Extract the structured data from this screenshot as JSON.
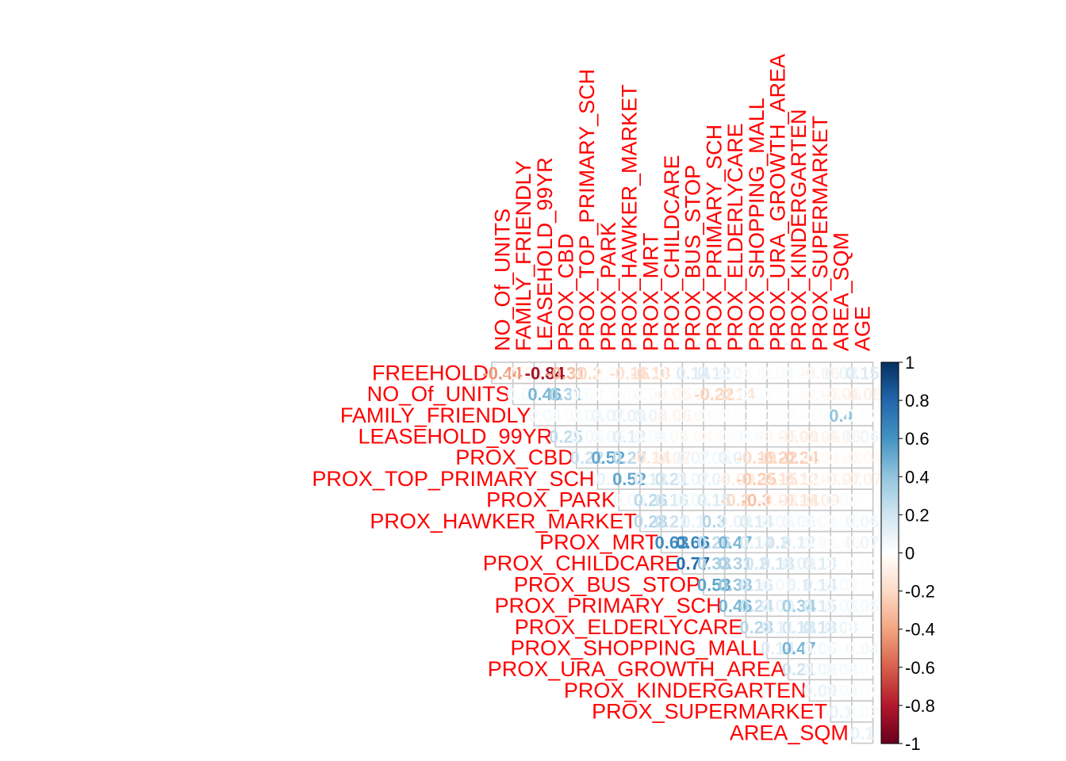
{
  "chart_data": {
    "type": "heatmap",
    "subtype": "correlation-matrix-upper-number",
    "title": "",
    "label_color": "#ff0000",
    "row_labels": [
      "FREEHOLD",
      "NO_Of_UNITS",
      "FAMILY_FRIENDLY",
      "LEASEHOLD_99YR",
      "PROX_CBD",
      "PROX_TOP_PRIMARY_SCH",
      "PROX_PARK",
      "PROX_HAWKER_MARKET",
      "PROX_MRT",
      "PROX_CHILDCARE",
      "PROX_BUS_STOP",
      "PROX_PRIMARY_SCH",
      "PROX_ELDERLYCARE",
      "PROX_SHOPPING_MALL",
      "PROX_URA_GROWTH_AREA",
      "PROX_KINDERGARTEN",
      "PROX_SUPERMARKET",
      "AREA_SQM"
    ],
    "column_labels": [
      "NO_Of_UNITS",
      "FAMILY_FRIENDLY",
      "LEASEHOLD_99YR",
      "PROX_CBD",
      "PROX_TOP_PRIMARY_SCH",
      "PROX_PARK",
      "PROX_HAWKER_MARKET",
      "PROX_MRT",
      "PROX_CHILDCARE",
      "PROX_BUS_STOP",
      "PROX_PRIMARY_SCH",
      "PROX_ELDERLYCARE",
      "PROX_SHOPPING_MALL",
      "PROX_URA_GROWTH_AREA",
      "PROX_KINDERGARTEN",
      "PROX_SUPERMARKET",
      "AREA_SQM",
      "AGE"
    ],
    "matrix": [
      [
        -0.44,
        -0.06,
        -0.84,
        -0.31,
        -0.2,
        -0.03,
        -0.16,
        -0.18,
        -0.01,
        0.14,
        0.12,
        0.05,
        -0.01,
        0.03,
        0.02,
        -0.06,
        0.08,
        0.15
      ],
      [
        null,
        0.04,
        0.46,
        0.31,
        0.03,
        0.01,
        0.02,
        0.03,
        -0.05,
        -0.04,
        -0.22,
        -0.14,
        0.02,
        0.01,
        -0.01,
        -0.03,
        -0.06,
        -0.08
      ],
      [
        null,
        null,
        0.04,
        0.02,
        0.04,
        0.07,
        0.09,
        0.08,
        -0.06,
        -0.03,
        0.02,
        0.01,
        0.0,
        -0.01,
        -0.01,
        0.02,
        0.4,
        0.02
      ],
      [
        null,
        null,
        null,
        0.25,
        0.05,
        0.05,
        0.12,
        0.04,
        0.04,
        -0.04,
        -0.02,
        0.02,
        0.03,
        -0.05,
        -0.09,
        -0.06,
        -0.06,
        0.06
      ],
      [
        null,
        null,
        null,
        null,
        0.22,
        0.52,
        0.27,
        -0.14,
        -0.07,
        0.07,
        0.05,
        0.09,
        -0.19,
        -0.22,
        -0.24,
        -0.03,
        -0.02,
        -0.04
      ],
      [
        null,
        null,
        null,
        null,
        null,
        0.1,
        0.52,
        0.13,
        0.21,
        0.07,
        0.09,
        -0.09,
        -0.25,
        -0.15,
        -0.12,
        -0.03,
        -0.07,
        -0.07
      ],
      [
        null,
        null,
        null,
        null,
        null,
        null,
        0.05,
        0.26,
        0.16,
        0.05,
        0.15,
        -0.2,
        -0.3,
        -0.08,
        -0.14,
        -0.09,
        0.02,
        0.0
      ],
      [
        null,
        null,
        null,
        null,
        null,
        null,
        null,
        0.28,
        0.21,
        0.1,
        0.3,
        0.09,
        0.14,
        0.05,
        0.06,
        0.03,
        0.02,
        0.06
      ],
      [
        null,
        null,
        null,
        null,
        null,
        null,
        null,
        null,
        0.63,
        0.66,
        0.26,
        0.47,
        0.14,
        0.2,
        0.12,
        0.03,
        -0.03,
        0.07
      ],
      [
        null,
        null,
        null,
        null,
        null,
        null,
        null,
        null,
        null,
        0.77,
        0.33,
        0.31,
        0.2,
        0.18,
        0.09,
        0.13,
        0.01,
        0.02
      ],
      [
        null,
        null,
        null,
        null,
        null,
        null,
        null,
        null,
        null,
        null,
        0.53,
        0.38,
        0.16,
        0.05,
        0.1,
        0.14,
        0.03,
        0.02
      ],
      [
        null,
        null,
        null,
        null,
        null,
        null,
        null,
        null,
        null,
        null,
        null,
        0.46,
        0.24,
        0.09,
        0.34,
        0.15,
        0.03,
        0.05
      ],
      [
        null,
        null,
        null,
        null,
        null,
        null,
        null,
        null,
        null,
        null,
        null,
        null,
        0.28,
        0.11,
        0.18,
        0.18,
        0.08,
        0.01
      ],
      [
        null,
        null,
        null,
        null,
        null,
        null,
        null,
        null,
        null,
        null,
        null,
        null,
        null,
        0.14,
        0.47,
        0.06,
        0.01,
        0.04
      ],
      [
        null,
        null,
        null,
        null,
        null,
        null,
        null,
        null,
        null,
        null,
        null,
        null,
        null,
        null,
        0.21,
        0.06,
        0.04,
        0.02
      ],
      [
        null,
        null,
        null,
        null,
        null,
        null,
        null,
        null,
        null,
        null,
        null,
        null,
        null,
        null,
        null,
        0.09,
        0.03,
        0.02
      ],
      [
        null,
        null,
        null,
        null,
        null,
        null,
        null,
        null,
        null,
        null,
        null,
        null,
        null,
        null,
        null,
        null,
        0.1,
        0.03
      ],
      [
        null,
        null,
        null,
        null,
        null,
        null,
        null,
        null,
        null,
        null,
        null,
        null,
        null,
        null,
        null,
        null,
        null,
        0.1
      ]
    ],
    "color_scale": {
      "min": -1,
      "max": 1,
      "low_color": "#67001f",
      "mid_color": "#ffffff",
      "high_color": "#053061",
      "ticks": [
        "1",
        "0.8",
        "0.6",
        "0.4",
        "0.2",
        "0",
        "-0.2",
        "-0.4",
        "-0.6",
        "-0.8",
        "-1"
      ]
    },
    "grid": true,
    "legend_placement": "right"
  }
}
